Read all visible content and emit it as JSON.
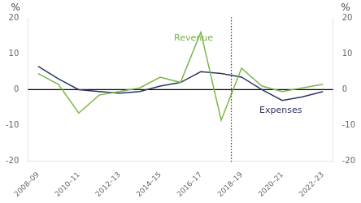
{
  "chart_data": {
    "type": "line",
    "categories": [
      "2008–09",
      null,
      "2010–11",
      null,
      "2012–13",
      null,
      "2014–15",
      null,
      "2016–17",
      null,
      "2018–19",
      null,
      "2020–21",
      null,
      "2022–23"
    ],
    "series": [
      {
        "name": "Revenue",
        "color": "#7ab648",
        "values": [
          4.5,
          1.5,
          -6.5,
          -1.5,
          -0.5,
          0.5,
          3.5,
          2.0,
          16.0,
          -8.5,
          6.0,
          1.0,
          -0.5,
          0.5,
          1.5
        ]
      },
      {
        "name": "Expenses",
        "color": "#2e3564",
        "values": [
          6.5,
          3.0,
          0.0,
          -0.5,
          -1.0,
          -0.5,
          1.0,
          2.0,
          5.0,
          4.5,
          3.5,
          0.0,
          -3.0,
          -2.0,
          -0.5
        ]
      }
    ],
    "ylim": [
      -20,
      20
    ],
    "yticks": [
      -20,
      -10,
      0,
      10,
      20
    ],
    "y2lim": [
      -20,
      20
    ],
    "y2ticks": [
      -20,
      -10,
      0,
      10,
      20
    ],
    "y_label": "%",
    "y2_label": "%",
    "hlines": [
      {
        "y": 0,
        "color": "#000000"
      }
    ],
    "vlines": [
      {
        "x": 9.5,
        "line_style": "dotted"
      }
    ],
    "annotations": [
      {
        "text": "Revenue",
        "x": 6.6,
        "y": 13.0,
        "color": "#7ab648"
      },
      {
        "text": "Expenses",
        "x": 10.8,
        "y": -4.5,
        "color": "#2e3564"
      }
    ],
    "grid": false
  }
}
